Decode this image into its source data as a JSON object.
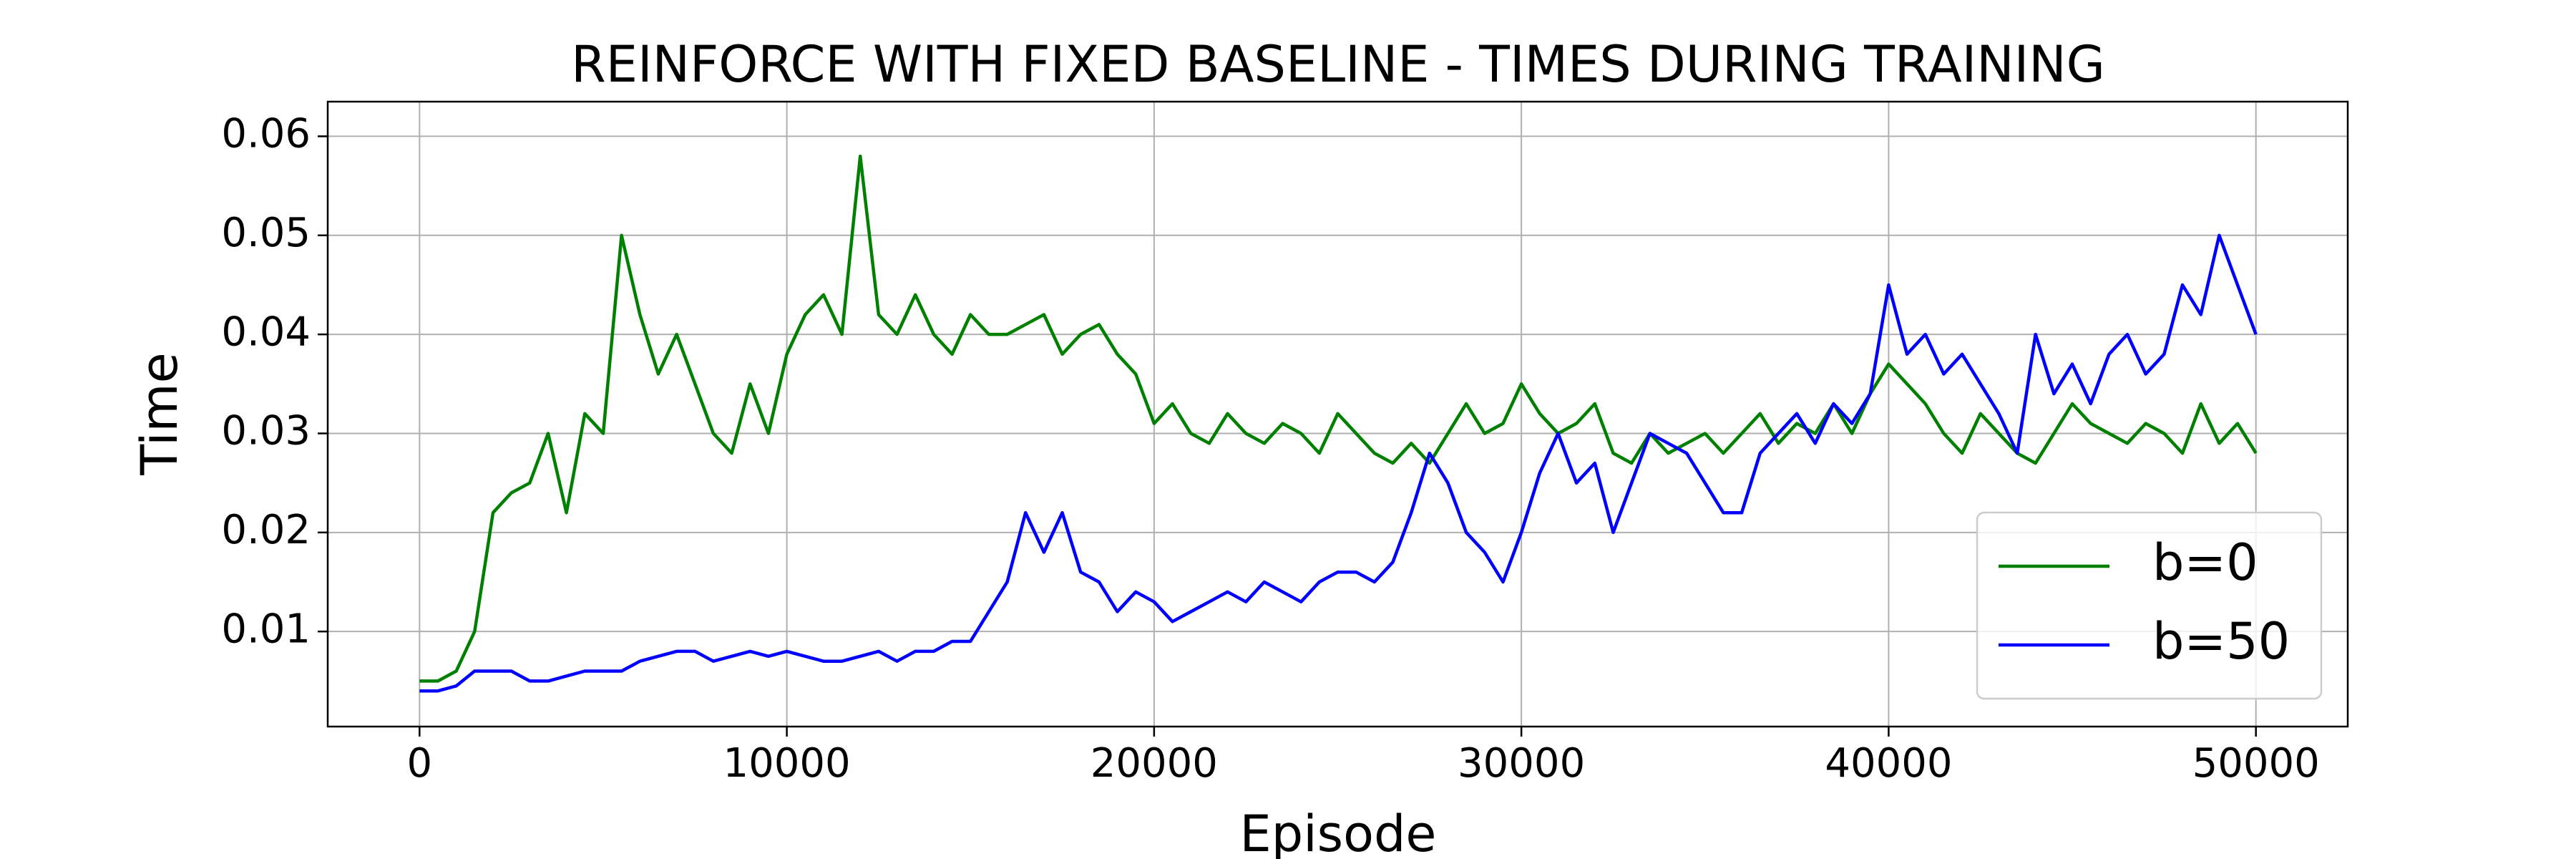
{
  "chart_data": {
    "type": "line",
    "title": "REINFORCE WITH FIXED BASELINE - TIMES DURING TRAINING",
    "x_label": "Episode",
    "y_label": "Time",
    "x": [
      0,
      500,
      1000,
      1500,
      2000,
      2500,
      3000,
      3500,
      4000,
      4500,
      5000,
      5500,
      6000,
      6500,
      7000,
      7500,
      8000,
      8500,
      9000,
      9500,
      10000,
      10500,
      11000,
      11500,
      12000,
      12500,
      13000,
      13500,
      14000,
      14500,
      15000,
      15500,
      16000,
      16500,
      17000,
      17500,
      18000,
      18500,
      19000,
      19500,
      20000,
      20500,
      21000,
      21500,
      22000,
      22500,
      23000,
      23500,
      24000,
      24500,
      25000,
      25500,
      26000,
      26500,
      27000,
      27500,
      28000,
      28500,
      29000,
      29500,
      30000,
      30500,
      31000,
      31500,
      32000,
      32500,
      33000,
      33500,
      34000,
      34500,
      35000,
      35500,
      36000,
      36500,
      37000,
      37500,
      38000,
      38500,
      39000,
      39500,
      40000,
      40500,
      41000,
      41500,
      42000,
      42500,
      43000,
      43500,
      44000,
      44500,
      45000,
      45500,
      46000,
      46500,
      47000,
      47500,
      48000,
      48500,
      49000,
      49500,
      50000
    ],
    "series": [
      {
        "name": "b=0",
        "color": "#008000",
        "values": [
          0.005,
          0.005,
          0.006,
          0.01,
          0.022,
          0.024,
          0.025,
          0.03,
          0.022,
          0.032,
          0.03,
          0.05,
          0.042,
          0.036,
          0.04,
          0.035,
          0.03,
          0.028,
          0.035,
          0.03,
          0.038,
          0.042,
          0.044,
          0.04,
          0.058,
          0.042,
          0.04,
          0.044,
          0.04,
          0.038,
          0.042,
          0.04,
          0.04,
          0.041,
          0.042,
          0.038,
          0.04,
          0.041,
          0.038,
          0.036,
          0.031,
          0.033,
          0.03,
          0.029,
          0.032,
          0.03,
          0.029,
          0.031,
          0.03,
          0.028,
          0.032,
          0.03,
          0.028,
          0.027,
          0.029,
          0.027,
          0.03,
          0.033,
          0.03,
          0.031,
          0.035,
          0.032,
          0.03,
          0.031,
          0.033,
          0.028,
          0.027,
          0.03,
          0.028,
          0.029,
          0.03,
          0.028,
          0.03,
          0.032,
          0.029,
          0.031,
          0.03,
          0.033,
          0.03,
          0.034,
          0.037,
          0.035,
          0.033,
          0.03,
          0.028,
          0.032,
          0.03,
          0.028,
          0.027,
          0.03,
          0.033,
          0.031,
          0.03,
          0.029,
          0.031,
          0.03,
          0.028,
          0.033,
          0.029,
          0.031,
          0.028
        ]
      },
      {
        "name": "b=50",
        "color": "#0000ff",
        "values": [
          0.004,
          0.004,
          0.0045,
          0.006,
          0.006,
          0.006,
          0.005,
          0.005,
          0.0055,
          0.006,
          0.006,
          0.006,
          0.007,
          0.0075,
          0.008,
          0.008,
          0.007,
          0.0075,
          0.008,
          0.0075,
          0.008,
          0.0075,
          0.007,
          0.007,
          0.0075,
          0.008,
          0.007,
          0.008,
          0.008,
          0.009,
          0.009,
          0.012,
          0.015,
          0.022,
          0.018,
          0.022,
          0.016,
          0.015,
          0.012,
          0.014,
          0.013,
          0.011,
          0.012,
          0.013,
          0.014,
          0.013,
          0.015,
          0.014,
          0.013,
          0.015,
          0.016,
          0.016,
          0.015,
          0.017,
          0.022,
          0.028,
          0.025,
          0.02,
          0.018,
          0.015,
          0.02,
          0.026,
          0.03,
          0.025,
          0.027,
          0.02,
          0.025,
          0.03,
          0.029,
          0.028,
          0.025,
          0.022,
          0.022,
          0.028,
          0.03,
          0.032,
          0.029,
          0.033,
          0.031,
          0.034,
          0.045,
          0.038,
          0.04,
          0.036,
          0.038,
          0.035,
          0.032,
          0.028,
          0.04,
          0.034,
          0.037,
          0.033,
          0.038,
          0.04,
          0.036,
          0.038,
          0.045,
          0.042,
          0.05,
          0.045,
          0.04
        ]
      }
    ],
    "xlim": [
      -2500,
      52500
    ],
    "ylim": [
      0.0004,
      0.0635
    ],
    "xticks": [
      0,
      10000,
      20000,
      30000,
      40000,
      50000
    ],
    "yticks": [
      0.01,
      0.02,
      0.03,
      0.04,
      0.05,
      0.06
    ],
    "grid": true,
    "legend": "lower right"
  }
}
